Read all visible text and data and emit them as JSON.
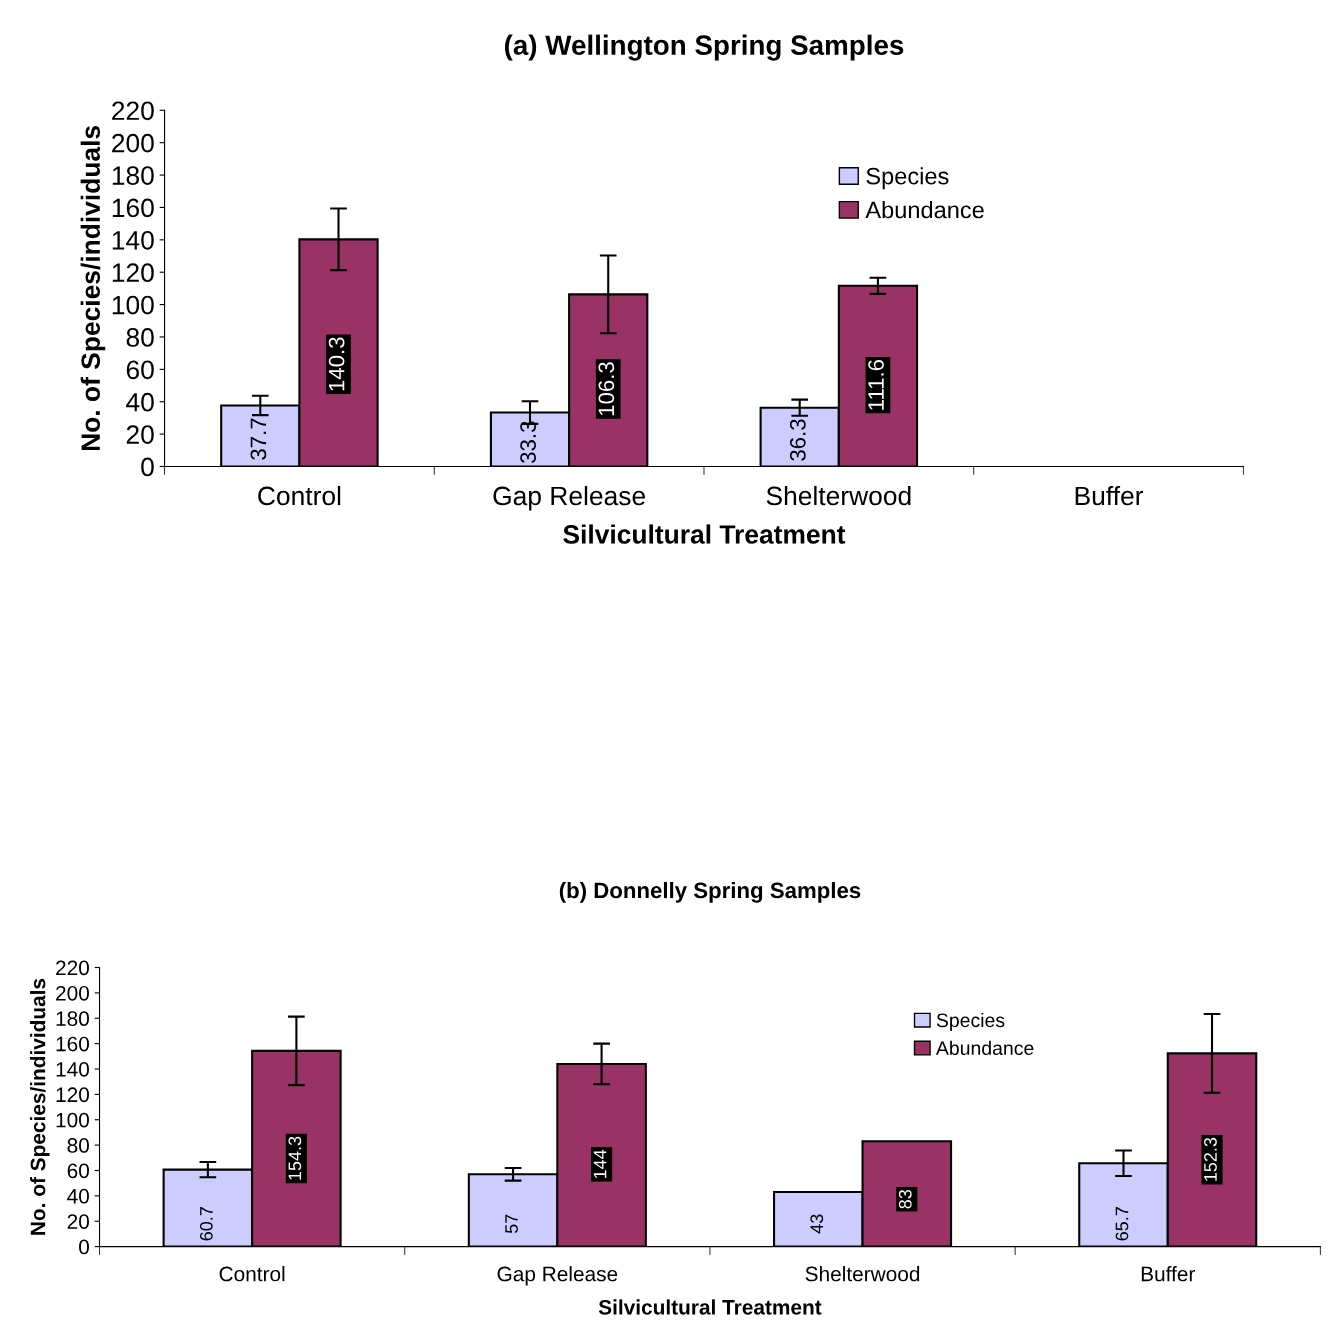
{
  "chart_data": [
    {
      "type": "bar",
      "title": "(a) Wellington Spring Samples",
      "xlabel": "Silvicultural Treatment",
      "ylabel": "No. of Species/individuals",
      "categories": [
        "Control",
        "Gap Release",
        "Shelterwood",
        "Buffer"
      ],
      "series": [
        {
          "name": "Species",
          "color": "#ccccff",
          "values": [
            37.7,
            33.3,
            36.3,
            null
          ],
          "errors": [
            6,
            7,
            5,
            null
          ]
        },
        {
          "name": "Abundance",
          "color": "#993366",
          "values": [
            140.3,
            106.3,
            111.6,
            null
          ],
          "errors": [
            19,
            24,
            5,
            null
          ]
        }
      ],
      "ylim": [
        0,
        220
      ],
      "yticks": [
        0,
        20,
        40,
        60,
        80,
        100,
        120,
        140,
        160,
        180,
        200,
        220
      ],
      "data_labels": true,
      "legend": "top right",
      "grid": false
    },
    {
      "type": "bar",
      "title": "(b) Donnelly Spring Samples",
      "xlabel": "Silvicultural Treatment",
      "ylabel": "No. of Species/individuals",
      "categories": [
        "Control",
        "Gap Release",
        "Shelterwood",
        "Buffer"
      ],
      "series": [
        {
          "name": "Species",
          "color": "#ccccff",
          "values": [
            60.7,
            57,
            43,
            65.7
          ],
          "errors": [
            6,
            5,
            null,
            10
          ]
        },
        {
          "name": "Abundance",
          "color": "#993366",
          "values": [
            154.3,
            144,
            83,
            152.3
          ],
          "errors": [
            27,
            16,
            null,
            31
          ]
        }
      ],
      "ylim": [
        0,
        220
      ],
      "yticks": [
        0,
        20,
        40,
        60,
        80,
        100,
        120,
        140,
        160,
        180,
        200,
        220
      ],
      "data_labels": true,
      "legend": "top right",
      "grid": false
    }
  ]
}
